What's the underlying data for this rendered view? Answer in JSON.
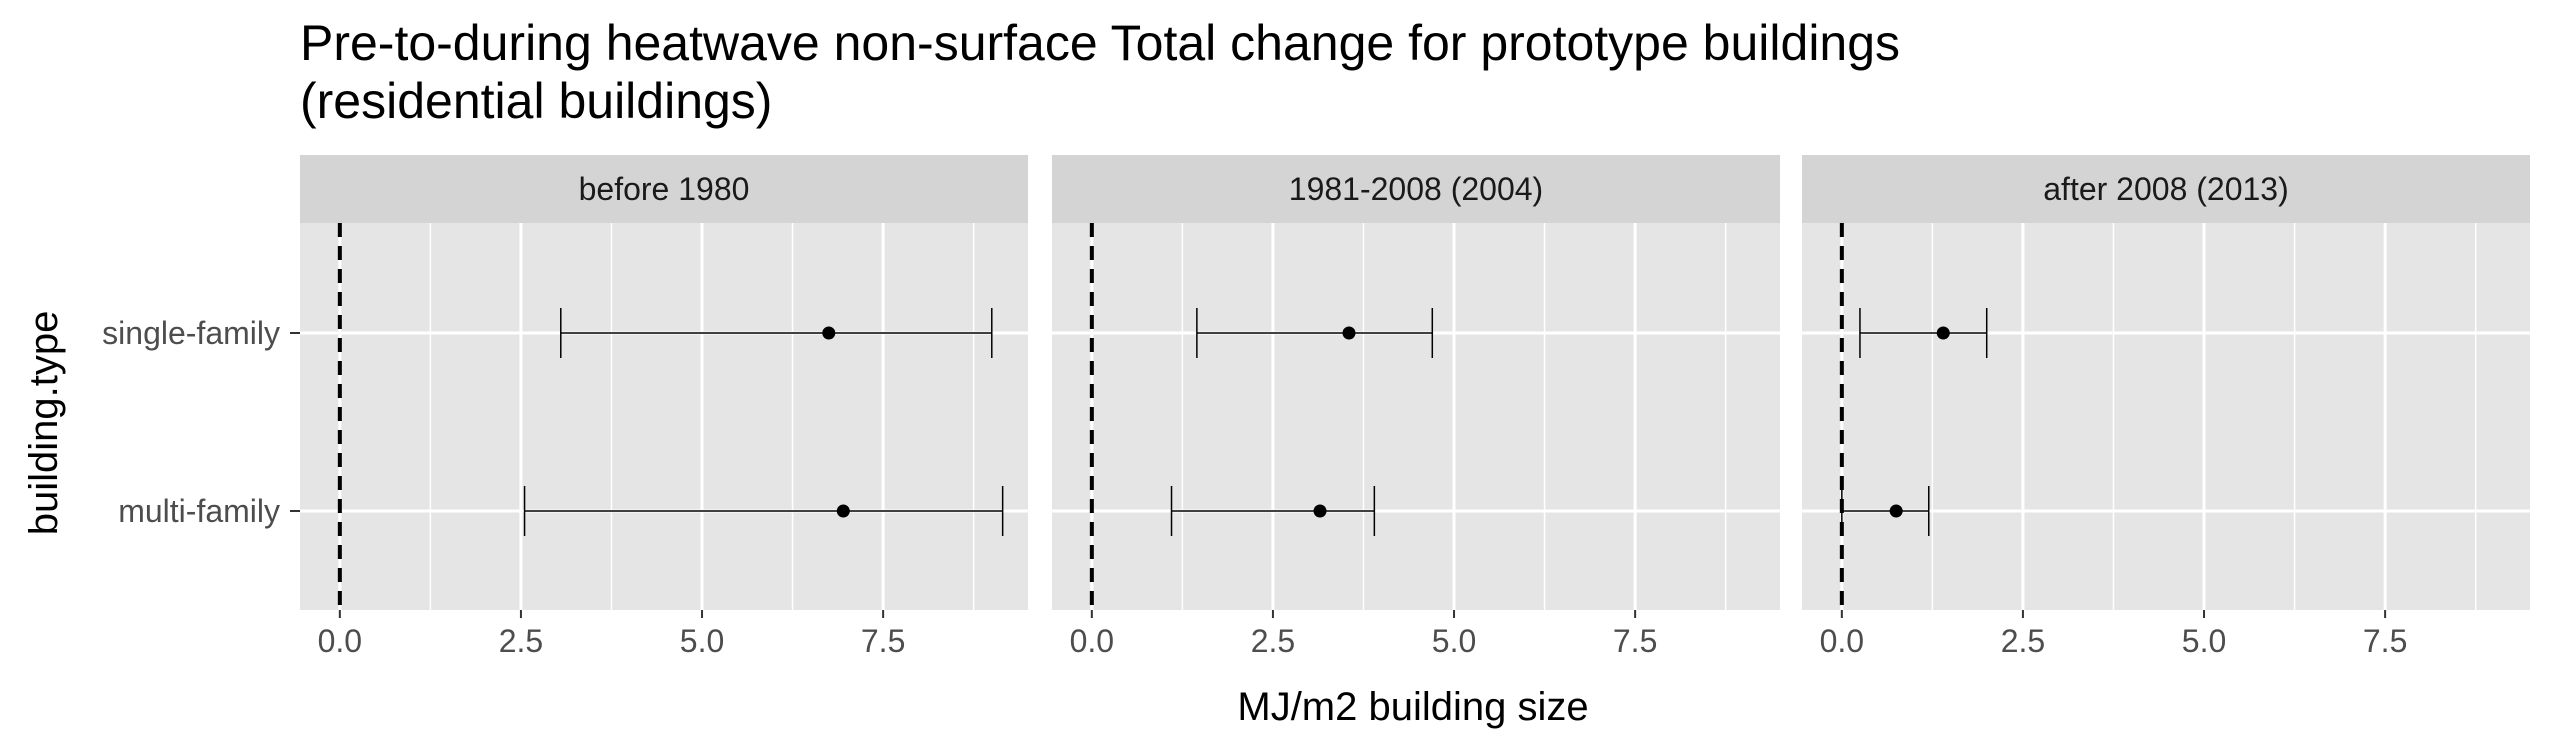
{
  "chart_data": {
    "type": "errorbar",
    "title_lines": [
      "Pre-to-during heatwave non-surface Total change for prototype buildings",
      "(residential buildings)"
    ],
    "xlabel": "MJ/m2 building size",
    "ylabel": "building.type",
    "xlim": [
      -0.55,
      9.5
    ],
    "x_ticks": [
      0,
      2.5,
      5,
      7.5
    ],
    "x_tick_labels": [
      "0.0",
      "2.5",
      "5.0",
      "7.5"
    ],
    "categories": [
      "single-family",
      "multi-family"
    ],
    "reference_line": {
      "x": 0,
      "style": "dashed"
    },
    "grid": true,
    "panels": [
      {
        "label": "before 1980",
        "points": [
          {
            "category": "single-family",
            "estimate": 6.75,
            "lower": 3.05,
            "upper": 9.0
          },
          {
            "category": "multi-family",
            "estimate": 6.95,
            "lower": 2.55,
            "upper": 9.15
          }
        ]
      },
      {
        "label": "1981-2008 (2004)",
        "points": [
          {
            "category": "single-family",
            "estimate": 3.55,
            "lower": 1.45,
            "upper": 4.7
          },
          {
            "category": "multi-family",
            "estimate": 3.15,
            "lower": 1.1,
            "upper": 3.9
          }
        ]
      },
      {
        "label": "after 2008 (2013)",
        "points": [
          {
            "category": "single-family",
            "estimate": 1.4,
            "lower": 0.25,
            "upper": 2.0
          },
          {
            "category": "multi-family",
            "estimate": 0.75,
            "lower": 0.0,
            "upper": 1.2
          }
        ]
      }
    ],
    "colors": {
      "panel_background": "#e5e5e5",
      "strip_background": "#d4d4d4",
      "grid": "#ffffff",
      "points": "#000000"
    }
  }
}
